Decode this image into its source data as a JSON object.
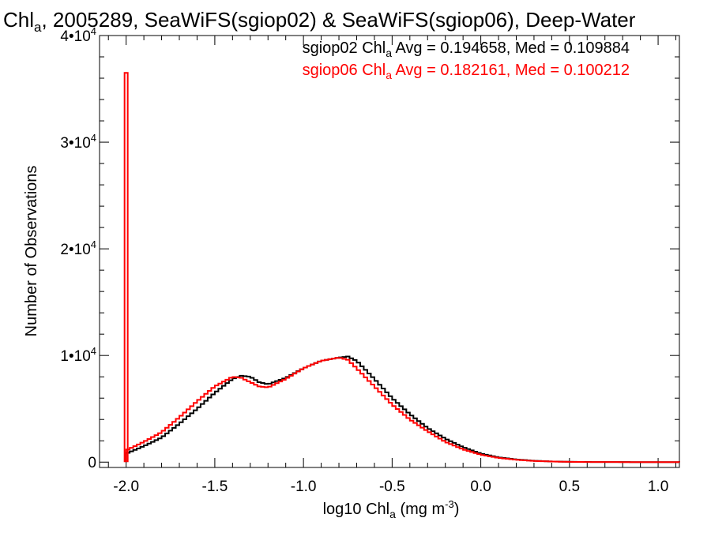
{
  "chart_data": {
    "type": "line",
    "title": {
      "p1": "Chl",
      "p1_sub": "a",
      "p2": ", 2005289, SeaWiFS(sgiop02) & SeaWiFS(sgiop06), Deep-Water"
    },
    "xlabel": {
      "pre": "log10 Chl",
      "sub": "a",
      "units": " (mg m",
      "sup": "-3",
      "close": ")"
    },
    "ylabel": "Number of Observations",
    "xlim": [
      -2.15,
      1.12
    ],
    "ylim": [
      -500,
      40000
    ],
    "x_ticks": [
      {
        "value": -2.0,
        "label": "-2.0"
      },
      {
        "value": -1.5,
        "label": "-1.5"
      },
      {
        "value": -1.0,
        "label": "-1.0"
      },
      {
        "value": -0.5,
        "label": "-0.5"
      },
      {
        "value": 0.0,
        "label": "0.0"
      },
      {
        "value": 0.5,
        "label": "0.5"
      },
      {
        "value": 1.0,
        "label": "1.0"
      }
    ],
    "y_ticks": [
      {
        "value": 0,
        "base": "0",
        "exp": ""
      },
      {
        "value": 10000,
        "base": "1•10",
        "exp": "4"
      },
      {
        "value": 20000,
        "base": "2•10",
        "exp": "4"
      },
      {
        "value": 30000,
        "base": "3•10",
        "exp": "4"
      },
      {
        "value": 40000,
        "base": "4•10",
        "exp": "4"
      }
    ],
    "legend_position": "top-right",
    "series": [
      {
        "color": "#000000",
        "legend": {
          "pre": "sgiop02 Chl",
          "sub": "a",
          "post": " Avg = 0.194658, Med = 0.109884"
        },
        "x": [
          -2.0,
          -1.9,
          -1.8,
          -1.7,
          -1.6,
          -1.5,
          -1.4,
          -1.35,
          -1.3,
          -1.25,
          -1.2,
          -1.1,
          -1.0,
          -0.9,
          -0.8,
          -0.75,
          -0.7,
          -0.6,
          -0.5,
          -0.4,
          -0.3,
          -0.2,
          -0.1,
          0.0,
          0.1,
          0.2,
          0.3,
          0.4,
          0.5,
          0.6,
          0.8,
          1.0,
          1.12
        ],
        "y": [
          800,
          1500,
          2300,
          3600,
          5000,
          6500,
          7800,
          8100,
          8000,
          7500,
          7300,
          7900,
          8800,
          9500,
          9800,
          9900,
          9500,
          7800,
          6000,
          4500,
          3200,
          2200,
          1400,
          800,
          450,
          250,
          130,
          60,
          30,
          15,
          5,
          2,
          0
        ]
      },
      {
        "color": "#ff0000",
        "legend": {
          "pre": "sgiop06 Chl",
          "sub": "a",
          "post": " Avg = 0.182161, Med = 0.100212"
        },
        "spike": {
          "x": -2.0,
          "y": 36500
        },
        "x": [
          -2.0,
          -1.9,
          -1.8,
          -1.7,
          -1.6,
          -1.5,
          -1.4,
          -1.35,
          -1.3,
          -1.25,
          -1.2,
          -1.1,
          -1.0,
          -0.9,
          -0.8,
          -0.75,
          -0.7,
          -0.6,
          -0.5,
          -0.4,
          -0.3,
          -0.2,
          -0.1,
          0.0,
          0.1,
          0.2,
          0.3,
          0.4,
          0.5,
          0.6,
          0.8,
          1.0,
          1.12
        ],
        "y": [
          1100,
          1900,
          2800,
          4200,
          5700,
          7100,
          8000,
          7900,
          7500,
          7100,
          7000,
          7800,
          8800,
          9500,
          9800,
          9600,
          8800,
          7100,
          5400,
          4000,
          2900,
          1900,
          1200,
          700,
          400,
          220,
          110,
          55,
          25,
          12,
          4,
          1,
          0
        ]
      }
    ]
  }
}
